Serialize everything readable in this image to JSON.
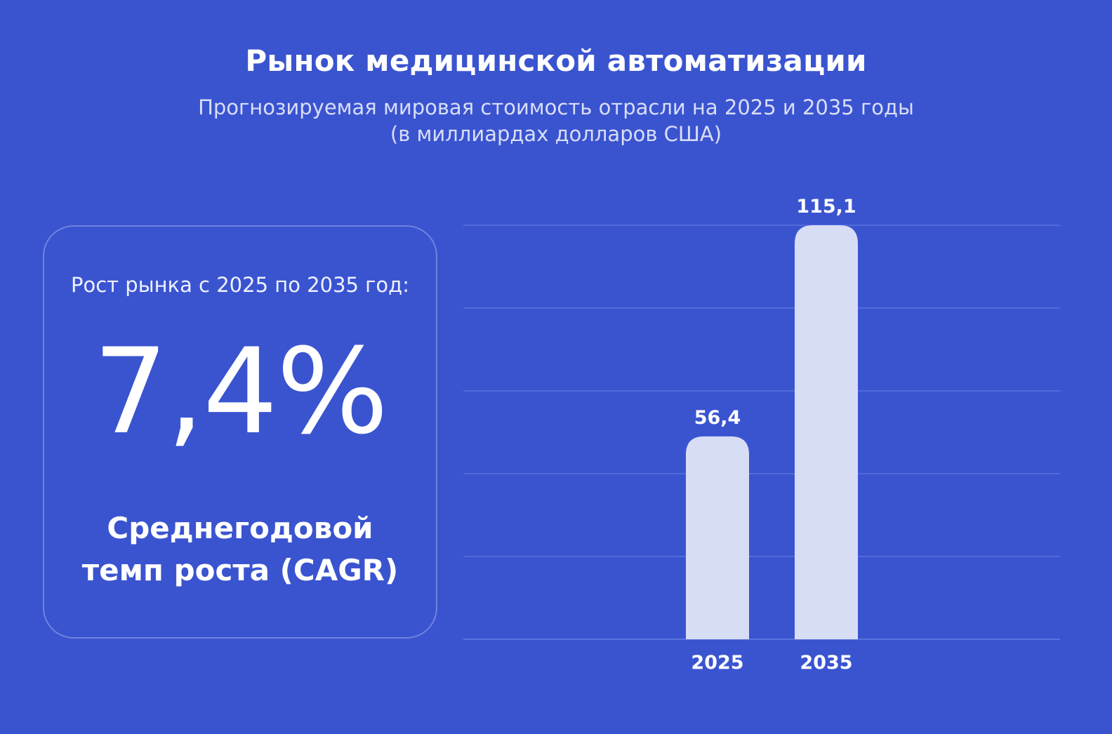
{
  "header": {
    "title": "Рынок медицинской автоматизации",
    "subtitle_line1": "Прогнозируемая мировая стоимость отрасли на 2025 и 2035 годы",
    "subtitle_line2": "(в миллиардах долларов США)"
  },
  "card": {
    "label": "Рост рынка с 2025 по 2035 год:",
    "value": "7,4%",
    "caption_line1": "Среднегодовой",
    "caption_line2": "темп роста (CAGR)"
  },
  "colors": {
    "background": "#3a54d0",
    "bar": "#d8ddf6",
    "gridline": "#5a72de",
    "text": "#ffffff"
  },
  "chart_data": {
    "type": "bar",
    "categories": [
      "2025",
      "2035"
    ],
    "values": [
      56.4,
      115.1
    ],
    "value_labels": [
      "56,4",
      "115,1"
    ],
    "ylim": [
      0,
      115.1
    ],
    "grid": true,
    "xlabel": "",
    "ylabel": ""
  }
}
